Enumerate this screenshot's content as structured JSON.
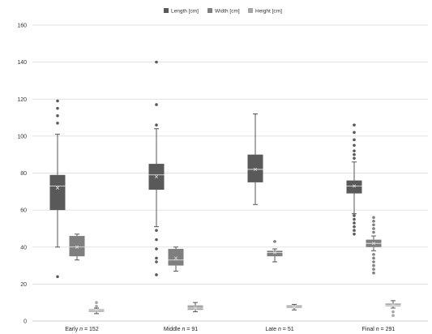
{
  "chart_data": {
    "type": "box",
    "title": "",
    "xlabel": "",
    "ylabel": "",
    "ylim": [
      0,
      160
    ],
    "yticks": [
      0,
      20,
      40,
      60,
      80,
      100,
      120,
      140,
      160
    ],
    "grid": true,
    "legend_position": "top",
    "categories": [
      {
        "prefix": "Early ",
        "n_symbol": "n",
        "suffix": " = 152"
      },
      {
        "prefix": "Middle ",
        "n_symbol": "n",
        "suffix": " = 91"
      },
      {
        "prefix": "Late ",
        "n_symbol": "n",
        "suffix": " = 51"
      },
      {
        "prefix": "Final ",
        "n_symbol": "n",
        "suffix": " = 291"
      }
    ],
    "series": [
      {
        "name": "Length [cm]",
        "color": "#595959",
        "boxes": [
          {
            "whisker_low": 40,
            "q1": 60,
            "median": 73,
            "q3": 79,
            "whisker_high": 101,
            "mean": 72,
            "outliers": [
              24,
              107,
              111,
              115,
              119
            ]
          },
          {
            "whisker_low": 51,
            "q1": 71,
            "median": 79,
            "q3": 85,
            "whisker_high": 104,
            "mean": 78,
            "outliers": [
              25,
              32,
              34,
              39,
              44,
              49,
              106,
              117,
              140
            ]
          },
          {
            "whisker_low": 63,
            "q1": 75,
            "median": 82,
            "q3": 90,
            "whisker_high": 112,
            "mean": 82,
            "outliers": []
          },
          {
            "whisker_low": 58,
            "q1": 69,
            "median": 73,
            "q3": 76,
            "whisker_high": 86,
            "mean": 73,
            "outliers": [
              47,
              49,
              51,
              53,
              55,
              57,
              88,
              90,
              92,
              95,
              98,
              102,
              106
            ]
          }
        ]
      },
      {
        "name": "Width [cm]",
        "color": "#7f7f7f",
        "boxes": [
          {
            "whisker_low": 33,
            "q1": 35,
            "median": 40,
            "q3": 46,
            "whisker_high": 47,
            "mean": 40,
            "outliers": []
          },
          {
            "whisker_low": 27,
            "q1": 30,
            "median": 33,
            "q3": 39,
            "whisker_high": 40,
            "mean": 34,
            "outliers": []
          },
          {
            "whisker_low": 32,
            "q1": 35,
            "median": 37,
            "q3": 38,
            "whisker_high": 39,
            "mean": 37,
            "outliers": [
              43
            ]
          },
          {
            "whisker_low": 38,
            "q1": 40,
            "median": 42,
            "q3": 44,
            "whisker_high": 46,
            "mean": 42,
            "outliers": [
              26,
              28,
              30,
              32,
              34,
              36,
              48,
              50,
              52,
              54,
              56
            ]
          }
        ]
      },
      {
        "name": "Height [cm]",
        "color": "#a6a6a6",
        "boxes": [
          {
            "whisker_low": 4,
            "q1": 5,
            "median": 6,
            "q3": 6.5,
            "whisker_high": 7,
            "mean": 6,
            "outliers": [
              8,
              10
            ]
          },
          {
            "whisker_low": 5,
            "q1": 6,
            "median": 7,
            "q3": 8.5,
            "whisker_high": 10,
            "mean": 7,
            "outliers": []
          },
          {
            "whisker_low": 6,
            "q1": 7,
            "median": 7.5,
            "q3": 8.5,
            "whisker_high": 9,
            "mean": 7.5,
            "outliers": []
          },
          {
            "whisker_low": 7,
            "q1": 8,
            "median": 8.5,
            "q3": 9.5,
            "whisker_high": 11,
            "mean": 8.5,
            "outliers": [
              3,
              5
            ]
          }
        ]
      }
    ]
  }
}
